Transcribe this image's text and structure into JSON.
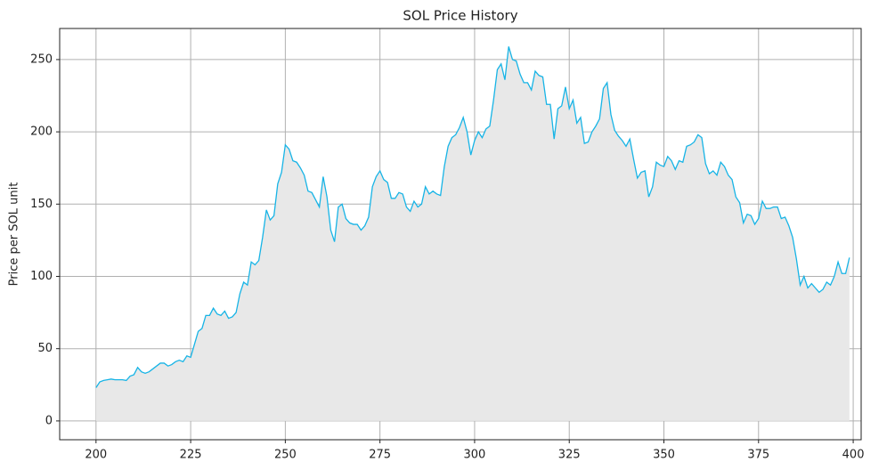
{
  "chart_data": {
    "type": "area",
    "title": "SOL Price History",
    "y_label": "Price per SOL unit",
    "x": [
      200,
      201,
      202,
      203,
      204,
      205,
      206,
      207,
      208,
      209,
      210,
      211,
      212,
      213,
      214,
      215,
      216,
      217,
      218,
      219,
      220,
      221,
      222,
      223,
      224,
      225,
      226,
      227,
      228,
      229,
      230,
      231,
      232,
      233,
      234,
      235,
      236,
      237,
      238,
      239,
      240,
      241,
      242,
      243,
      244,
      245,
      246,
      247,
      248,
      249,
      250,
      251,
      252,
      253,
      254,
      255,
      256,
      257,
      258,
      259,
      260,
      261,
      262,
      263,
      264,
      265,
      266,
      267,
      268,
      269,
      270,
      271,
      272,
      273,
      274,
      275,
      276,
      277,
      278,
      279,
      280,
      281,
      282,
      283,
      284,
      285,
      286,
      287,
      288,
      289,
      290,
      291,
      292,
      293,
      294,
      295,
      296,
      297,
      298,
      299,
      300,
      301,
      302,
      303,
      304,
      305,
      306,
      307,
      308,
      309,
      310,
      311,
      312,
      313,
      314,
      315,
      316,
      317,
      318,
      319,
      320,
      321,
      322,
      323,
      324,
      325,
      326,
      327,
      328,
      329,
      330,
      331,
      332,
      333,
      334,
      335,
      336,
      337,
      338,
      339,
      340,
      341,
      342,
      343,
      344,
      345,
      346,
      347,
      348,
      349,
      350,
      351,
      352,
      353,
      354,
      355,
      356,
      357,
      358,
      359,
      360,
      361,
      362,
      363,
      364,
      365,
      366,
      367,
      368,
      369,
      370,
      371,
      372,
      373,
      374,
      375,
      376,
      377,
      378,
      379,
      380,
      381,
      382,
      383,
      384,
      385,
      386,
      387,
      388,
      389,
      390,
      391,
      392,
      393,
      394,
      395,
      396,
      397,
      398,
      399
    ],
    "values": [
      23,
      27,
      28,
      28.5,
      29,
      28.5,
      28.5,
      28.5,
      28,
      31,
      32,
      37,
      34,
      33,
      34,
      36,
      38,
      40,
      40,
      38,
      39,
      41,
      42,
      41,
      45,
      44,
      53,
      62,
      64,
      73,
      73,
      78,
      74,
      73,
      76,
      71,
      72,
      75,
      88,
      96,
      94,
      110,
      108,
      111,
      127,
      146,
      139,
      142,
      164,
      172,
      191,
      188,
      180,
      179,
      175,
      170,
      159,
      158,
      153,
      148,
      169,
      155,
      132,
      124,
      148,
      150,
      140,
      137,
      136,
      136,
      132,
      135,
      141,
      162,
      169,
      173,
      167,
      165,
      154,
      154,
      158,
      157,
      148,
      145,
      152,
      148,
      150,
      162,
      157,
      159,
      157,
      156,
      176,
      190,
      196,
      198,
      203,
      210,
      200,
      184,
      194,
      200,
      196,
      202,
      204,
      222,
      243,
      247,
      236,
      259,
      250,
      249,
      240,
      234,
      234,
      229,
      242,
      239,
      238,
      219,
      219,
      195,
      216,
      218,
      231,
      216,
      222,
      206,
      210,
      192,
      193,
      200,
      204,
      209,
      230,
      234,
      212,
      201,
      197,
      194,
      190,
      195,
      181,
      168,
      172,
      173,
      155,
      162,
      179,
      177,
      176,
      183,
      180,
      174,
      180,
      179,
      190,
      191,
      193,
      198,
      196,
      178,
      171,
      173,
      170,
      179,
      176,
      170,
      167,
      155,
      151,
      137,
      143,
      142,
      136,
      140,
      152,
      147,
      147,
      148,
      148,
      140,
      141,
      135,
      127,
      112,
      94,
      100,
      92,
      95,
      92,
      89,
      91,
      96,
      94,
      100,
      110,
      102,
      102,
      113
    ],
    "color": "#17b4e6",
    "fill_color": "#e8e8e8",
    "xlim": [
      190.4,
      402.1
    ],
    "ylim": [
      -13,
      271.5
    ],
    "xticks": [
      200,
      225,
      250,
      275,
      300,
      325,
      350,
      375,
      400
    ],
    "yticks": [
      0,
      50,
      100,
      150,
      200,
      250
    ],
    "grid": true
  }
}
